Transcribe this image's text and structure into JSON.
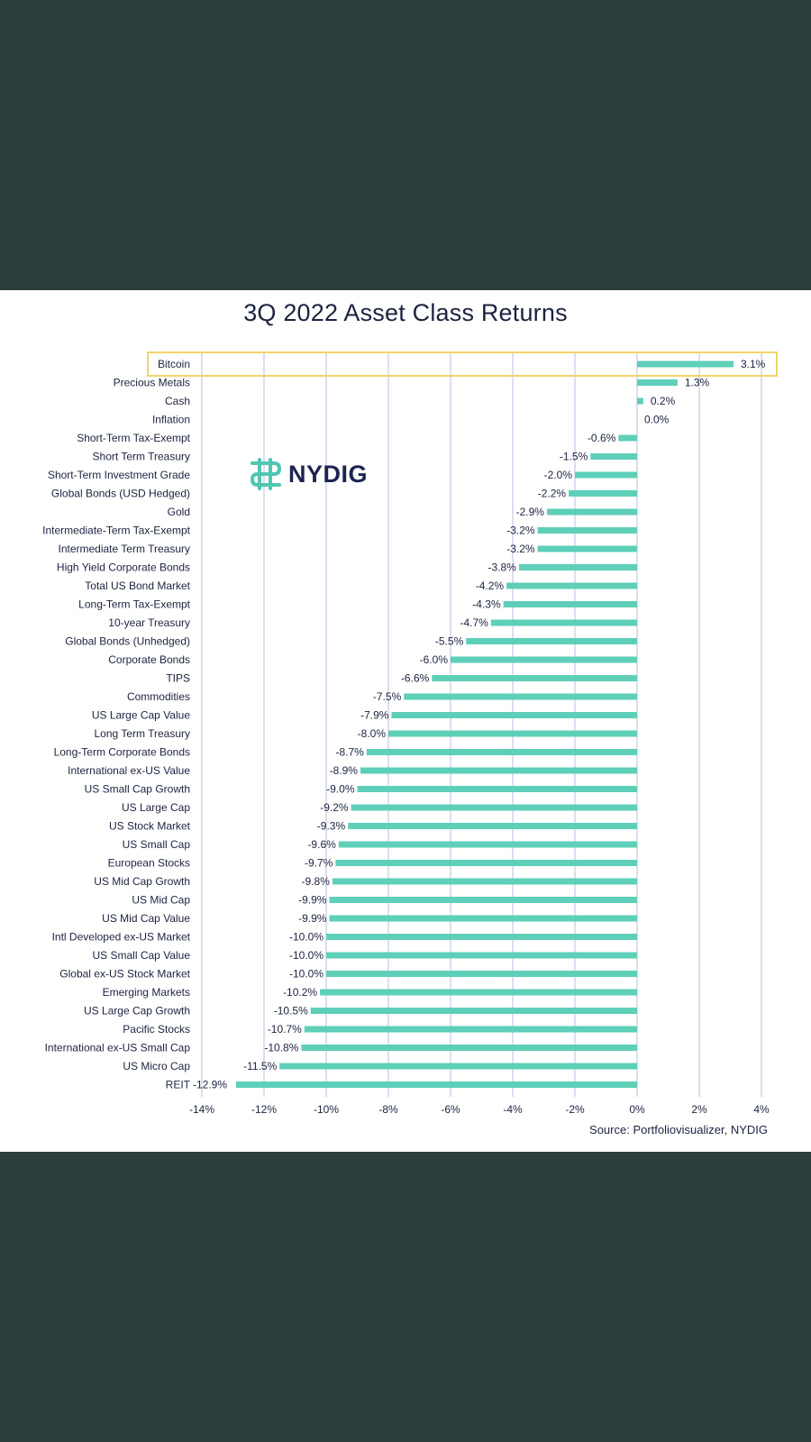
{
  "title": "3Q 2022 Asset Class Returns",
  "logo": {
    "text": "NYDIG",
    "icon": "nydig-logo-icon",
    "color": "#1c2452",
    "accent": "#4fc7b2"
  },
  "source": "Source: Portfoliovisualizer, NYDIG",
  "colors": {
    "bar": "#5ecfb8",
    "grid": "#b9bfe0",
    "highlight": "#f2d36b",
    "text": "#1c2340"
  },
  "chart_data": {
    "type": "bar",
    "orientation": "horizontal",
    "title": "3Q 2022 Asset Class Returns",
    "xlim": [
      -14,
      4
    ],
    "x_ticks": [
      -14,
      -12,
      -10,
      -8,
      -6,
      -4,
      -2,
      0,
      2,
      4
    ],
    "x_tick_labels": [
      "-14%",
      "-12%",
      "-10%",
      "-8%",
      "-6%",
      "-4%",
      "-2%",
      "0%",
      "2%",
      "4%"
    ],
    "grid": "vertical",
    "highlight": "Bitcoin",
    "categories": [
      "Bitcoin",
      "Precious Metals",
      "Cash",
      "Inflation",
      "Short-Term Tax-Exempt",
      "Short Term Treasury",
      "Short-Term Investment Grade",
      "Global Bonds (USD Hedged)",
      "Gold",
      "Intermediate-Term Tax-Exempt",
      "Intermediate Term Treasury",
      "High Yield Corporate Bonds",
      "Total US Bond Market",
      "Long-Term Tax-Exempt",
      "10-year Treasury",
      "Global Bonds (Unhedged)",
      "Corporate Bonds",
      "TIPS",
      "Commodities",
      "US Large Cap Value",
      "Long Term Treasury",
      "Long-Term Corporate Bonds",
      "International ex-US Value",
      "US Small Cap Growth",
      "US Large Cap",
      "US Stock Market",
      "US Small Cap",
      "European Stocks",
      "US Mid Cap Growth",
      "US Mid Cap",
      "US Mid Cap Value",
      "Intl Developed ex-US Market",
      "US Small Cap Value",
      "Global ex-US Stock Market",
      "Emerging Markets",
      "US Large Cap Growth",
      "Pacific Stocks",
      "International ex-US Small Cap",
      "US Micro Cap",
      "REIT"
    ],
    "values": [
      3.1,
      1.3,
      0.2,
      0.0,
      -0.6,
      -1.5,
      -2.0,
      -2.2,
      -2.9,
      -3.2,
      -3.2,
      -3.8,
      -4.2,
      -4.3,
      -4.7,
      -5.5,
      -6.0,
      -6.6,
      -7.5,
      -7.9,
      -8.0,
      -8.7,
      -8.9,
      -9.0,
      -9.2,
      -9.3,
      -9.6,
      -9.7,
      -9.8,
      -9.9,
      -9.9,
      -10.0,
      -10.0,
      -10.0,
      -10.2,
      -10.5,
      -10.7,
      -10.8,
      -11.5,
      -12.9
    ],
    "value_labels": [
      "3.1%",
      "1.3%",
      "0.2%",
      "0.0%",
      "-0.6%",
      "-1.5%",
      "-2.0%",
      "-2.2%",
      "-2.9%",
      "-3.2%",
      "-3.2%",
      "-3.8%",
      "-4.2%",
      "-4.3%",
      "-4.7%",
      "-5.5%",
      "-6.0%",
      "-6.6%",
      "-7.5%",
      "-7.9%",
      "-8.0%",
      "-8.7%",
      "-8.9%",
      "-9.0%",
      "-9.2%",
      "-9.3%",
      "-9.6%",
      "-9.7%",
      "-9.8%",
      "-9.9%",
      "-9.9%",
      "-10.0%",
      "-10.0%",
      "-10.0%",
      "-10.2%",
      "-10.5%",
      "-10.7%",
      "-10.8%",
      "-11.5%",
      "-12.9%"
    ]
  }
}
